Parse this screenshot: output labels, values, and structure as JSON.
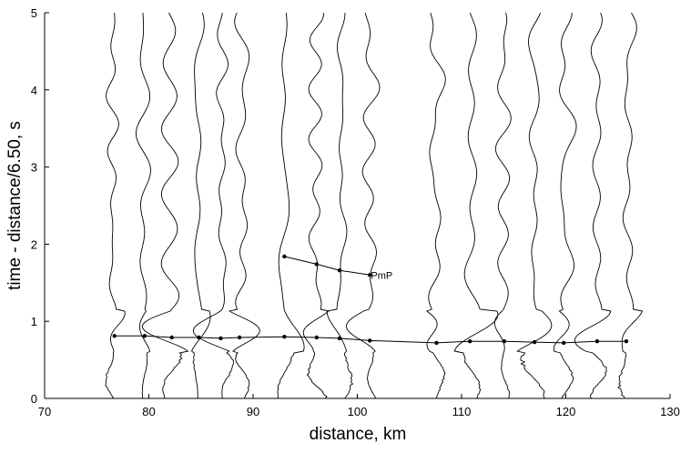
{
  "chart_data": {
    "type": "line",
    "title": "",
    "xlabel": "distance, km",
    "ylabel": "time - distance/6.50, s",
    "xlim": [
      70,
      130
    ],
    "ylim": [
      0,
      5
    ],
    "xticks": [
      70,
      80,
      90,
      100,
      110,
      120,
      130
    ],
    "yticks": [
      0,
      1,
      2,
      3,
      4,
      5
    ],
    "grid": false,
    "trace_offsets_km": [
      76.5,
      79.5,
      82.0,
      84.7,
      87.0,
      89.0,
      93.0,
      96.0,
      98.5,
      101.2,
      107.5,
      111.0,
      114.0,
      117.0,
      120.0,
      123.0,
      126.0
    ],
    "series": [
      {
        "name": "",
        "x": [
          76.7,
          79.6,
          82.2,
          84.8,
          86.9,
          88.7,
          93.0,
          96.1,
          98.3,
          101.2,
          107.6,
          110.8,
          114.1,
          117.0,
          119.8,
          123.0,
          125.8
        ],
        "y": [
          0.81,
          0.81,
          0.79,
          0.79,
          0.78,
          0.79,
          0.8,
          0.79,
          0.78,
          0.75,
          0.72,
          0.74,
          0.74,
          0.73,
          0.72,
          0.74,
          0.74
        ]
      },
      {
        "name": "",
        "x": [
          93.0,
          96.1,
          98.3,
          101.2
        ],
        "y": [
          1.84,
          1.74,
          1.66,
          1.6
        ]
      }
    ],
    "annotations": [
      {
        "text": "PmP",
        "x": 101.3,
        "y": 1.6
      }
    ]
  }
}
